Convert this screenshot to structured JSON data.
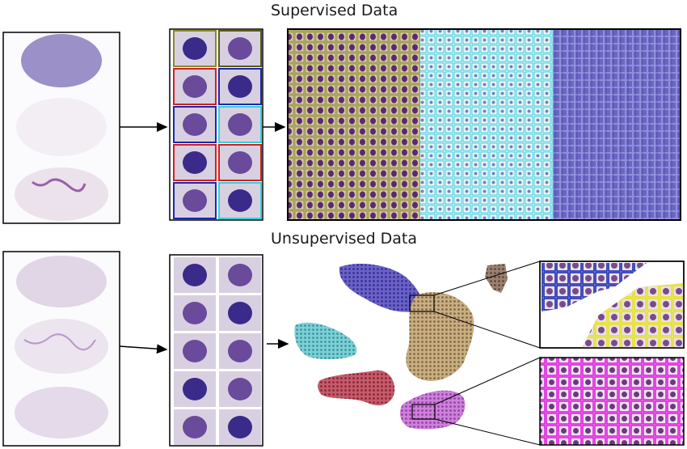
{
  "supervised": {
    "title": "Supervised Data",
    "crop_frame_colors": [
      "#8a8a2a",
      "#5a5a1a",
      "#d02020",
      "#1a28b0",
      "#1a28b0",
      "#36d0d8",
      "#d02020",
      "#d02020",
      "#1a28b0",
      "#36d0d8"
    ],
    "mosaic_sections": [
      {
        "label_color": "#a0a030",
        "tint": "#b7a48a"
      },
      {
        "label_color": "#40d0e0",
        "tint": "#c9eef2"
      },
      {
        "label_color": "#7a80d8",
        "tint": "#6a68c0"
      }
    ]
  },
  "unsupervised": {
    "title": "Unsupervised Data",
    "clusters": [
      {
        "name": "blue",
        "color": "#5b4fb8"
      },
      {
        "name": "tan",
        "color": "#c0a070"
      },
      {
        "name": "brown",
        "color": "#8a7060"
      },
      {
        "name": "cyan",
        "color": "#6cc8d0"
      },
      {
        "name": "red",
        "color": "#b84a5c"
      },
      {
        "name": "magenta",
        "color": "#c070d0"
      }
    ],
    "zoom_colors": {
      "top": [
        "#1a28b0",
        "#e8e020",
        "#d02020"
      ],
      "bottom": "#e020e0"
    }
  },
  "slide_colors": {
    "stain_dark": "#8878b8",
    "stain_light": "#d8cde0"
  }
}
